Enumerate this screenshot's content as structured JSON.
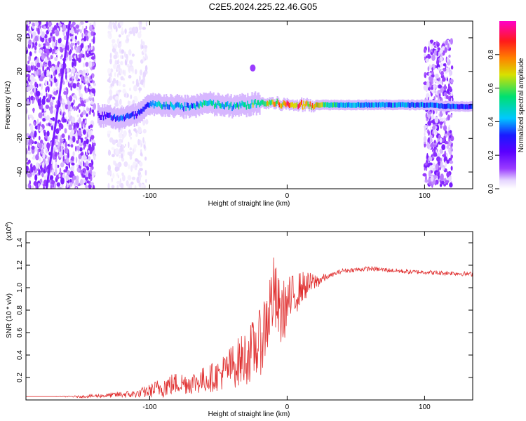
{
  "figure_title": "C2E5.2024.225.22.46.G05",
  "colors": {
    "snr_line": "#e03030",
    "spectrum_background": "#ffffff",
    "colormap": [
      "#ffffff",
      "#e6d6ff",
      "#9a3cff",
      "#5a00ff",
      "#1a1aff",
      "#00c8ff",
      "#00e070",
      "#d8e000",
      "#ff8000",
      "#ff1a1a",
      "#ff00c8"
    ]
  },
  "chart_data": [
    {
      "type": "heatmap",
      "title": "",
      "xlabel": "Height of straight line (km)",
      "ylabel": "Frequency (Hz)",
      "xlim": [
        -190,
        135
      ],
      "ylim": [
        -50,
        50
      ],
      "x_ticks": [
        -100,
        0,
        100
      ],
      "x_tick_labels": [
        "-100",
        "0",
        "100"
      ],
      "y_ticks": [
        -40,
        -20,
        0,
        20,
        40
      ],
      "y_tick_labels": [
        "-40",
        "-20",
        "0",
        "20",
        "40"
      ],
      "colorbar": {
        "label": "Normalized spectral amplitude",
        "range": [
          0,
          1
        ],
        "ticks": [
          0.0,
          0.2,
          0.4,
          0.6,
          0.8
        ],
        "tick_labels": [
          "0.0",
          "0.2",
          "0.4",
          "0.6",
          "0.8"
        ]
      },
      "ridge": {
        "x": [
          -138,
          -130,
          -120,
          -110,
          -100,
          -90,
          -80,
          -70,
          -60,
          -50,
          -40,
          -30,
          -20,
          -10,
          0,
          10,
          20,
          40,
          60,
          80,
          100,
          120,
          135
        ],
        "frequency": [
          -6,
          -7,
          -8,
          -6,
          0,
          0,
          -1,
          -1,
          1,
          0,
          -1,
          0,
          1,
          1,
          0,
          0,
          0,
          0,
          0,
          0,
          0,
          -1,
          -1
        ],
        "amplitude": [
          0.3,
          0.4,
          0.45,
          0.4,
          0.5,
          0.55,
          0.5,
          0.5,
          0.6,
          0.55,
          0.55,
          0.6,
          0.7,
          0.75,
          0.9,
          0.85,
          0.8,
          0.5,
          0.5,
          0.5,
          0.5,
          0.45,
          0.4
        ]
      },
      "noise_regions": [
        {
          "x_range": [
            -190,
            -140
          ],
          "f_range": [
            -50,
            50
          ],
          "amplitude": 0.2
        },
        {
          "x_range": [
            -130,
            -102
          ],
          "f_range": [
            -50,
            50
          ],
          "amplitude": 0.08
        },
        {
          "x_range": [
            100,
            120
          ],
          "f_range": [
            -48,
            38
          ],
          "amplitude": 0.2
        }
      ],
      "streak": {
        "x": [
          -175,
          -158
        ],
        "frequency": [
          -50,
          50
        ]
      },
      "blob": {
        "x": -25,
        "frequency": 22
      }
    },
    {
      "type": "line",
      "title": "",
      "xlabel": "Height of straight line (km)",
      "ylabel": "SNR (10 * v/v)",
      "y_multiplier_label": "(x10",
      "y_multiplier_exponent": "4",
      "y_multiplier_suffix": ")",
      "xlim": [
        -190,
        135
      ],
      "ylim": [
        0,
        1.5
      ],
      "x_ticks": [
        -100,
        0,
        100
      ],
      "x_tick_labels": [
        "-100",
        "0",
        "100"
      ],
      "y_ticks": [
        0.2,
        0.4,
        0.6,
        0.8,
        1.0,
        1.2,
        1.4
      ],
      "y_tick_labels": [
        "0.2",
        "0.4",
        "0.6",
        "0.8",
        "1.0",
        "1.2",
        "1.4"
      ],
      "series": [
        {
          "x": [
            -190,
            -170,
            -150,
            -130,
            -120,
            -110,
            -100,
            -90,
            -80,
            -70,
            -60,
            -50,
            -40,
            -30,
            -20,
            -15,
            -10,
            -5,
            0,
            10,
            20,
            30,
            40,
            50,
            60,
            70,
            80,
            90,
            100,
            110,
            120,
            135
          ],
          "values": [
            0.03,
            0.03,
            0.03,
            0.04,
            0.05,
            0.05,
            0.08,
            0.12,
            0.15,
            0.15,
            0.18,
            0.22,
            0.3,
            0.38,
            0.5,
            0.7,
            0.95,
            0.75,
            0.85,
            1.0,
            1.05,
            1.1,
            1.15,
            1.16,
            1.17,
            1.16,
            1.15,
            1.14,
            1.14,
            1.13,
            1.13,
            1.12
          ],
          "noise": [
            0.0,
            0.0,
            0.01,
            0.02,
            0.03,
            0.04,
            0.06,
            0.1,
            0.1,
            0.1,
            0.12,
            0.14,
            0.2,
            0.25,
            0.3,
            0.35,
            0.35,
            0.3,
            0.25,
            0.15,
            0.08,
            0.02,
            0.02,
            0.02,
            0.02,
            0.02,
            0.02,
            0.02,
            0.02,
            0.02,
            0.02,
            0.02
          ]
        }
      ]
    }
  ]
}
